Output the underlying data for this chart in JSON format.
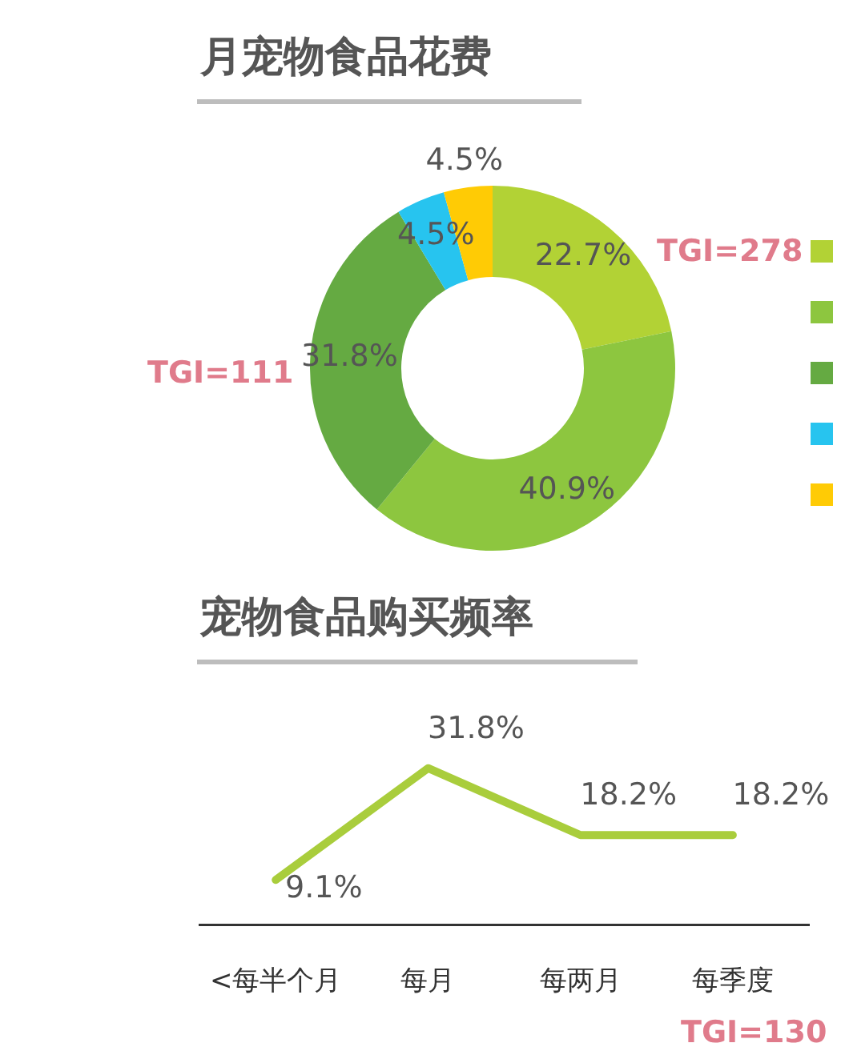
{
  "chart_data": [
    {
      "type": "donut",
      "title": "月宠物食品花费",
      "categories": [
        null,
        null,
        null,
        null,
        null
      ],
      "values": [
        22.7,
        40.9,
        31.8,
        4.5,
        4.5
      ],
      "colors": [
        "#b2d235",
        "#8dc63f",
        "#65aa42",
        "#27c4ef",
        "#ffcb05"
      ],
      "value_labels": [
        "22.7%",
        "40.9%",
        "31.8%",
        "4.5%",
        "4.5%"
      ],
      "annotations": [
        "TGI=278",
        "TGI=111"
      ]
    },
    {
      "type": "line",
      "title": "宠物食品购买频率",
      "categories": [
        "<每半个月",
        "每月",
        "每两月",
        "每季度"
      ],
      "series": [
        {
          "color": "#a9cd3c",
          "values": [
            9.1,
            31.8,
            18.2,
            18.2
          ],
          "value_labels": [
            "9.1%",
            "31.8%",
            "18.2%",
            "18.2%"
          ]
        }
      ],
      "marker": "none",
      "grid": false,
      "legend": false,
      "annotations": [
        "TGI=130"
      ]
    }
  ]
}
